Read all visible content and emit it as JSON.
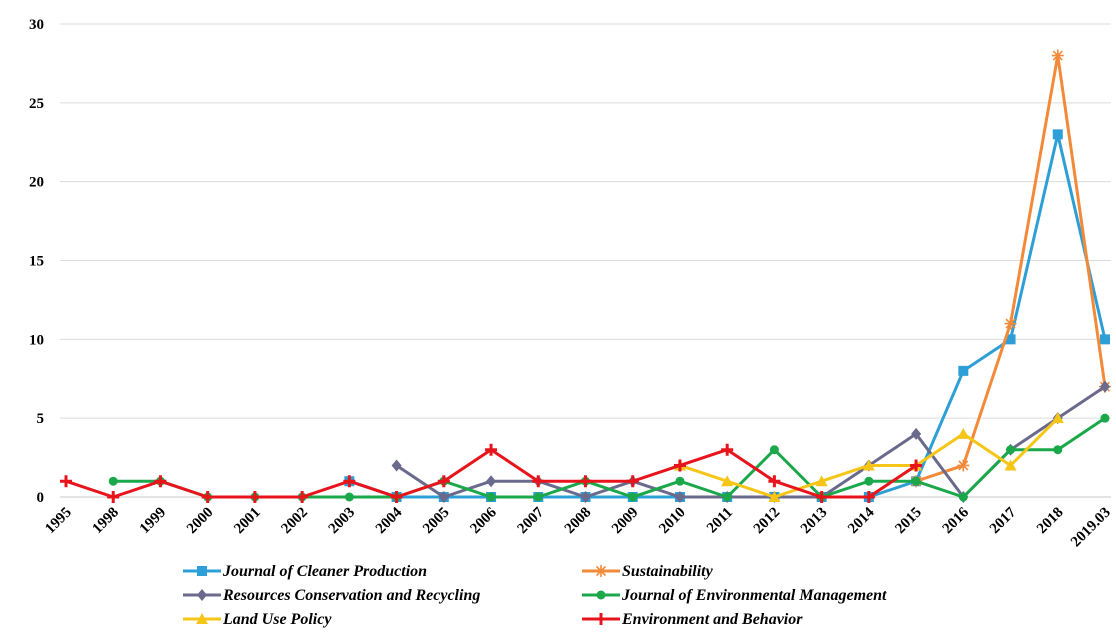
{
  "chart_data": {
    "type": "line",
    "title": "",
    "xlabel": "",
    "ylabel": "",
    "ylim": [
      0,
      30
    ],
    "yticks": [
      0,
      5,
      10,
      15,
      20,
      25,
      30
    ],
    "grid": "horizontal",
    "legend_position": "bottom",
    "categories": [
      "1995",
      "1998",
      "1999",
      "2000",
      "2001",
      "2002",
      "2003",
      "2004",
      "2005",
      "2006",
      "2007",
      "2008",
      "2009",
      "2010",
      "2011",
      "2012",
      "2013",
      "2014",
      "2015",
      "2016",
      "2017",
      "2018",
      "2019.03"
    ],
    "series": [
      {
        "name": "Journal of Cleaner Production",
        "color": "#2e9fd6",
        "marker": "square",
        "values": [
          null,
          null,
          null,
          null,
          null,
          null,
          1,
          0,
          0,
          0,
          0,
          0,
          0,
          0,
          0,
          0,
          0,
          0,
          1,
          8,
          10,
          23,
          10
        ]
      },
      {
        "name": "Sustainability",
        "color": "#f28a3a",
        "marker": "asterisk",
        "values": [
          null,
          null,
          null,
          null,
          null,
          null,
          null,
          null,
          null,
          null,
          null,
          null,
          null,
          null,
          null,
          null,
          null,
          null,
          1,
          2,
          11,
          28,
          7
        ]
      },
      {
        "name": "Resources Conservation and Recycling",
        "color": "#6a6a8c",
        "marker": "diamond",
        "values": [
          null,
          null,
          null,
          null,
          null,
          null,
          null,
          2,
          0,
          1,
          1,
          0,
          1,
          0,
          0,
          0,
          0,
          2,
          4,
          0,
          3,
          5,
          7
        ]
      },
      {
        "name": "Journal of Environmental Management",
        "color": "#1aa84a",
        "marker": "circle",
        "values": [
          null,
          1,
          1,
          0,
          0,
          0,
          0,
          0,
          1,
          0,
          0,
          1,
          0,
          1,
          0,
          3,
          0,
          1,
          1,
          0,
          3,
          3,
          5
        ]
      },
      {
        "name": "Land Use Policy",
        "color": "#f5c518",
        "marker": "triangle",
        "values": [
          null,
          null,
          null,
          null,
          null,
          null,
          null,
          null,
          null,
          null,
          null,
          null,
          null,
          2,
          1,
          0,
          1,
          2,
          2,
          4,
          2,
          5,
          null
        ]
      },
      {
        "name": "Environment and Behavior",
        "color": "#e8141c",
        "marker": "plus",
        "values": [
          1,
          0,
          1,
          0,
          0,
          0,
          1,
          0,
          1,
          3,
          1,
          1,
          1,
          2,
          3,
          1,
          0,
          0,
          2,
          null,
          null,
          null,
          null
        ]
      }
    ]
  }
}
